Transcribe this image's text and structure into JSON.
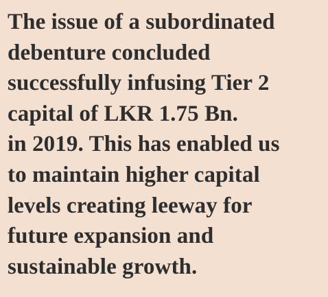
{
  "text": {
    "lines": [
      "The issue of a subordinated",
      "debenture concluded",
      "successfully infusing Tier 2",
      "capital of LKR 1.75 Bn.",
      "in 2019. This has enabled us",
      "to maintain higher capital",
      "levels creating leeway for",
      "future expansion and",
      "sustainable growth."
    ]
  }
}
